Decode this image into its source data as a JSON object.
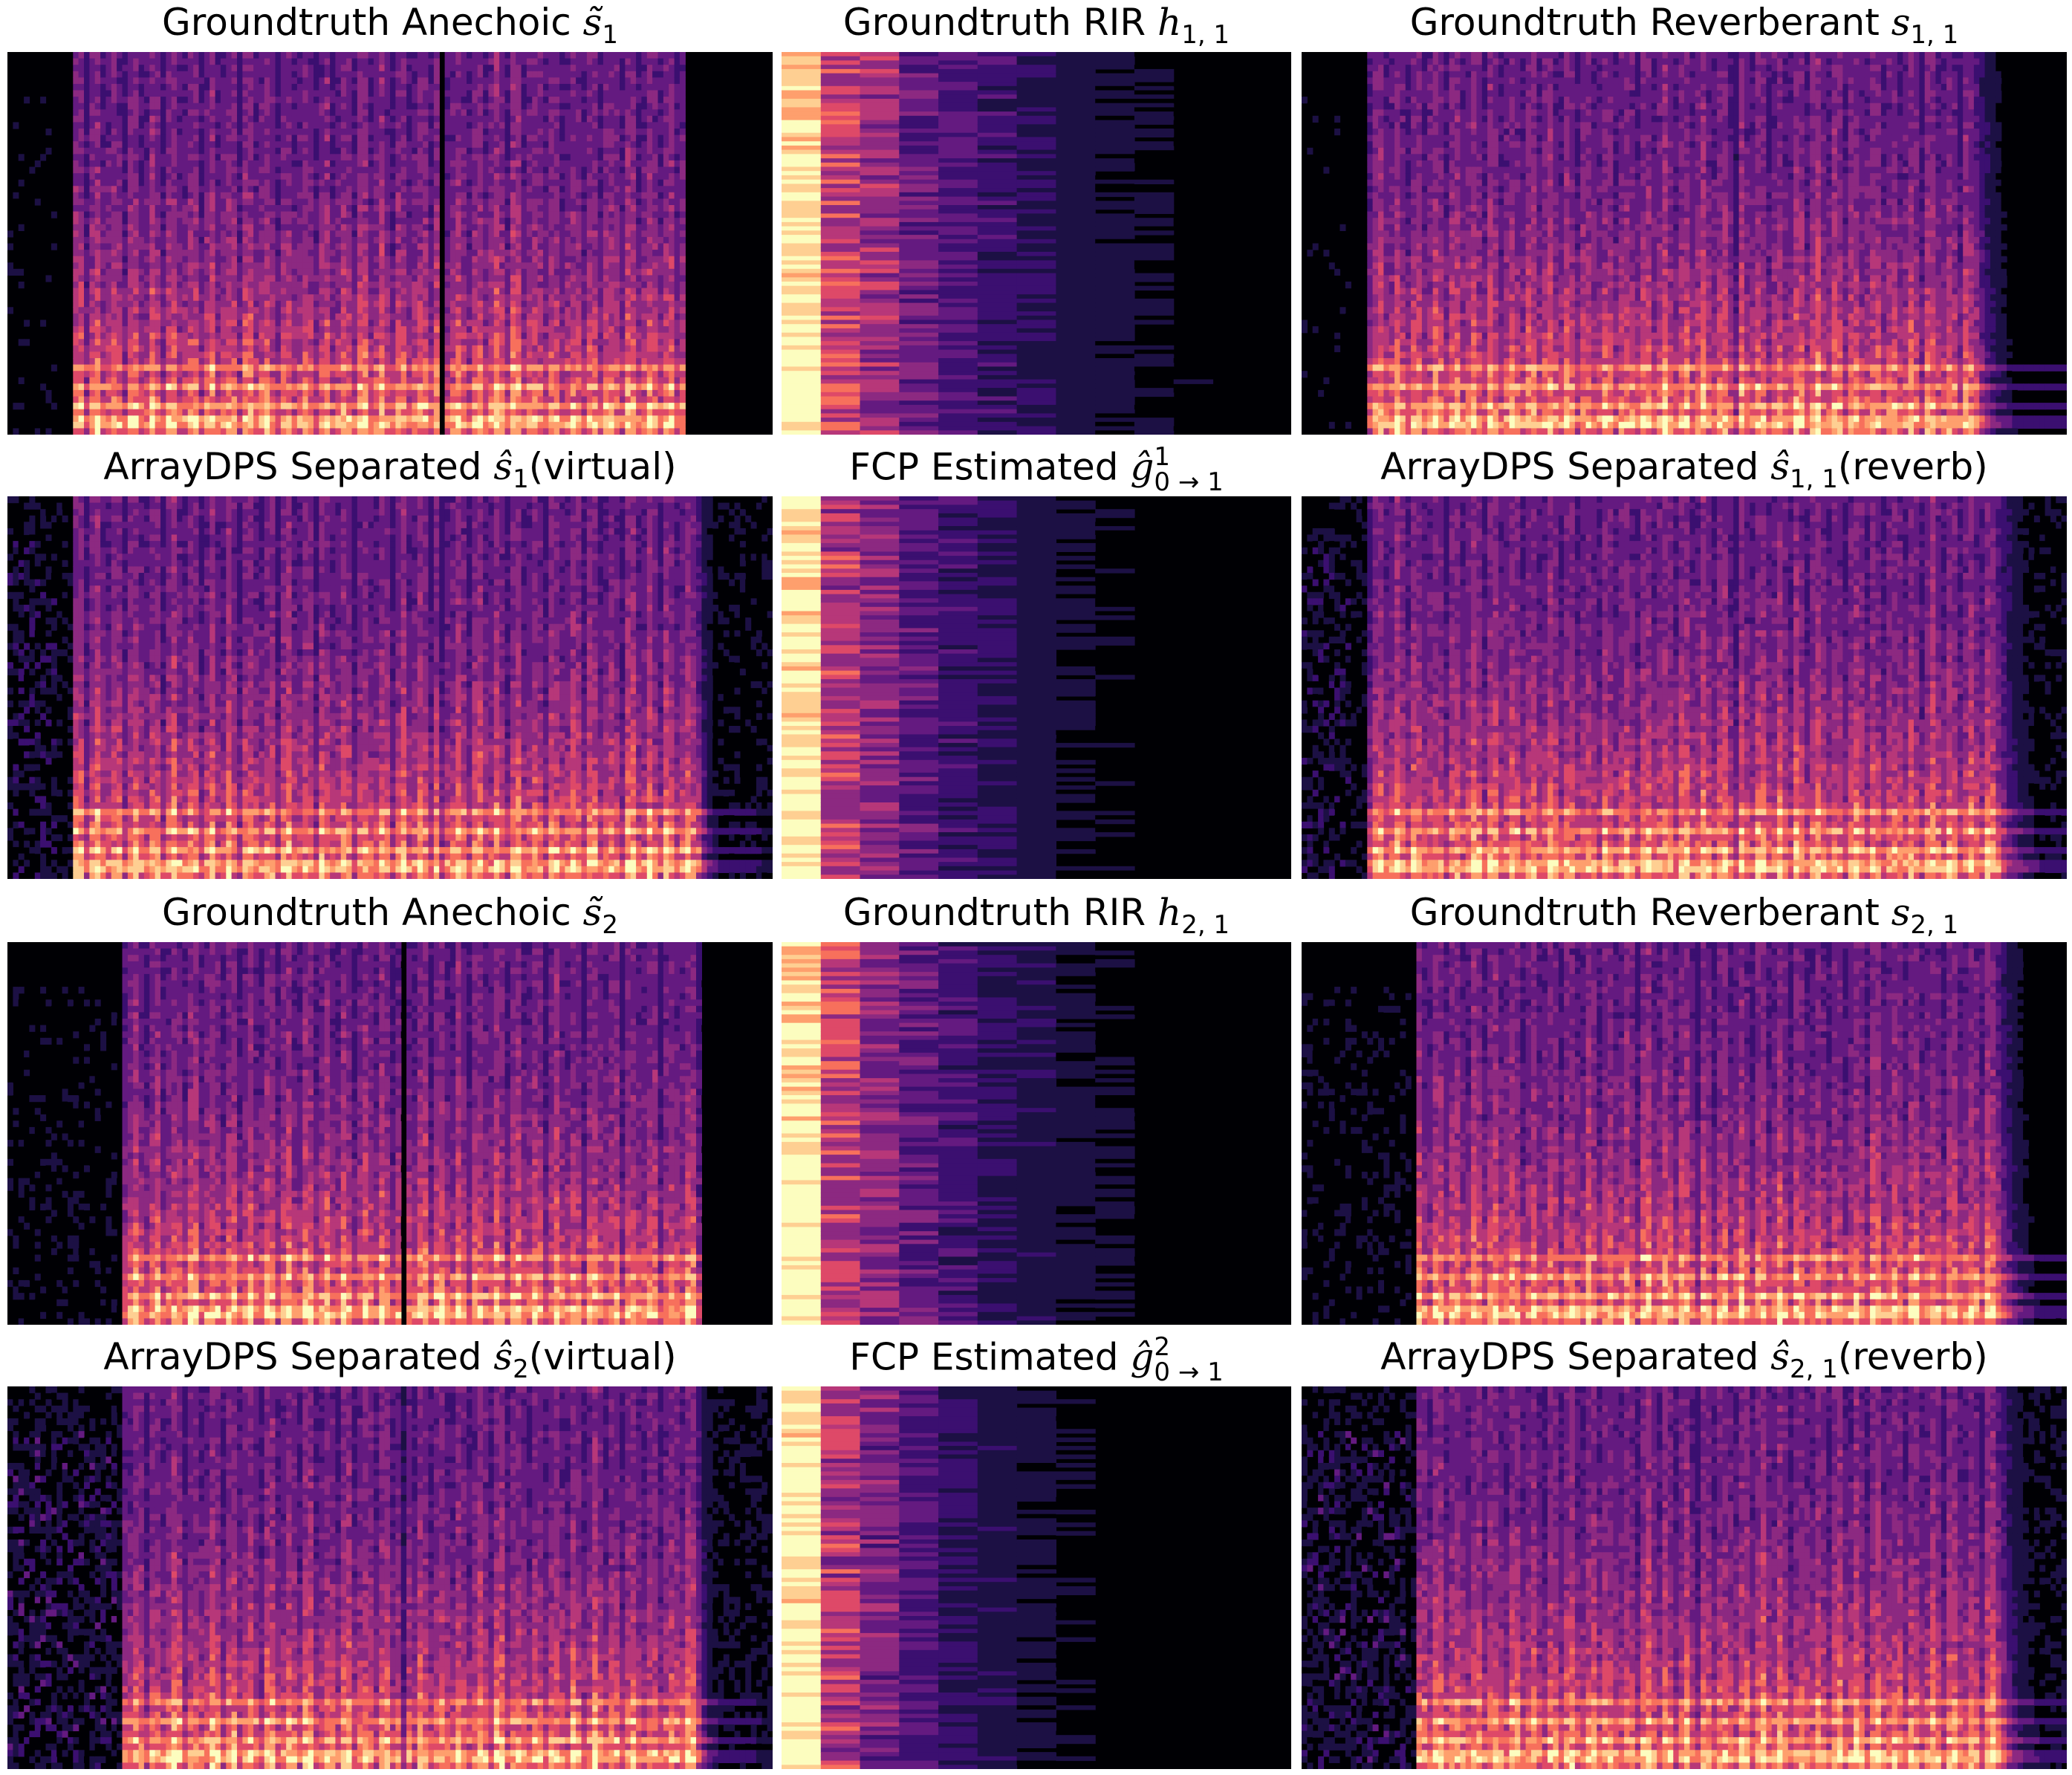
{
  "palette": {
    "background": "#000004",
    "c1": "#1c1044",
    "c2": "#3b0f70",
    "c3": "#641a80",
    "c4": "#8c2981",
    "c5": "#b73779",
    "c6": "#de4968",
    "c7": "#f7705c",
    "c8": "#fe9f6d",
    "c9": "#fecf92",
    "c10": "#fcfdbf"
  },
  "panels": [
    {
      "id": "gt-anechoic-1",
      "kind": "speech",
      "title": {
        "text": "Groundtruth Anechoic ",
        "math": "s̃",
        "sub": "1",
        "sup": "",
        "suffix": ""
      },
      "speech": {
        "onset": 0.06,
        "segments": [
          [
            0.08,
            0.56
          ],
          [
            0.57,
            0.88
          ]
        ],
        "reverb": 0.0,
        "floor": 0.05
      }
    },
    {
      "id": "gt-rir-1",
      "kind": "rir",
      "title": {
        "text": "Groundtruth RIR ",
        "math": "h",
        "sub": "1, 1",
        "sup": "",
        "suffix": ""
      },
      "rir": {
        "decay": 0.34,
        "variant": 1
      }
    },
    {
      "id": "gt-reverberant-11",
      "kind": "speech",
      "title": {
        "text": "Groundtruth Reverberant ",
        "math": "s",
        "sub": "1, 1",
        "sup": "",
        "suffix": ""
      },
      "speech": {
        "onset": 0.06,
        "segments": [
          [
            0.08,
            0.56
          ],
          [
            0.57,
            0.88
          ]
        ],
        "reverb": 0.6,
        "floor": 0.05
      }
    },
    {
      "id": "arraydps-virtual-1",
      "kind": "speech",
      "title": {
        "text": "ArrayDPS Separated ",
        "math": "ŝ",
        "sub": "1",
        "sup": "",
        "suffix": "(virtual)"
      },
      "speech": {
        "onset": 0.06,
        "segments": [
          [
            0.08,
            0.56
          ],
          [
            0.57,
            0.9
          ]
        ],
        "reverb": 0.15,
        "floor": 0.12
      }
    },
    {
      "id": "fcp-estimated-1",
      "kind": "rir",
      "title": {
        "text": "FCP Estimated ",
        "math": "ĝ",
        "sub": "0 → 1",
        "sup": "1",
        "suffix": ""
      },
      "rir": {
        "decay": 0.28,
        "variant": 2
      }
    },
    {
      "id": "arraydps-reverb-11",
      "kind": "speech",
      "title": {
        "text": "ArrayDPS Separated ",
        "math": "ŝ",
        "sub": "1, 1",
        "sup": "",
        "suffix": "(reverb)"
      },
      "speech": {
        "onset": 0.06,
        "segments": [
          [
            0.08,
            0.56
          ],
          [
            0.57,
            0.9
          ]
        ],
        "reverb": 0.65,
        "floor": 0.12
      }
    },
    {
      "id": "gt-anechoic-2",
      "kind": "speech",
      "title": {
        "text": "Groundtruth Anechoic ",
        "math": "s̃",
        "sub": "2",
        "sup": "",
        "suffix": ""
      },
      "speech": {
        "onset": 0.14,
        "segments": [
          [
            0.15,
            0.51
          ],
          [
            0.52,
            0.9
          ]
        ],
        "reverb": 0.0,
        "floor": 0.08
      }
    },
    {
      "id": "gt-rir-2",
      "kind": "rir",
      "title": {
        "text": "Groundtruth RIR ",
        "math": "h",
        "sub": "2, 1",
        "sup": "",
        "suffix": ""
      },
      "rir": {
        "decay": 0.3,
        "variant": 3
      }
    },
    {
      "id": "gt-reverberant-21",
      "kind": "speech",
      "title": {
        "text": "Groundtruth Reverberant ",
        "math": "s",
        "sub": "2, 1",
        "sup": "",
        "suffix": ""
      },
      "speech": {
        "onset": 0.14,
        "segments": [
          [
            0.15,
            0.51
          ],
          [
            0.52,
            0.9
          ]
        ],
        "reverb": 0.6,
        "floor": 0.08
      }
    },
    {
      "id": "arraydps-virtual-2",
      "kind": "speech",
      "title": {
        "text": "ArrayDPS Separated ",
        "math": "ŝ",
        "sub": "2",
        "sup": "",
        "suffix": "(virtual)"
      },
      "speech": {
        "onset": 0.14,
        "segments": [
          [
            0.15,
            0.51
          ],
          [
            0.52,
            0.9
          ]
        ],
        "reverb": 0.15,
        "floor": 0.14
      }
    },
    {
      "id": "fcp-estimated-2",
      "kind": "rir",
      "title": {
        "text": "FCP Estimated ",
        "math": "ĝ",
        "sub": "0 → 1",
        "sup": "2",
        "suffix": ""
      },
      "rir": {
        "decay": 0.25,
        "variant": 4
      }
    },
    {
      "id": "arraydps-reverb-21",
      "kind": "speech",
      "title": {
        "text": "ArrayDPS Separated ",
        "math": "ŝ",
        "sub": "2, 1",
        "sup": "",
        "suffix": "(reverb)"
      },
      "speech": {
        "onset": 0.14,
        "segments": [
          [
            0.15,
            0.51
          ],
          [
            0.52,
            0.9
          ]
        ],
        "reverb": 0.6,
        "floor": 0.14
      }
    }
  ]
}
